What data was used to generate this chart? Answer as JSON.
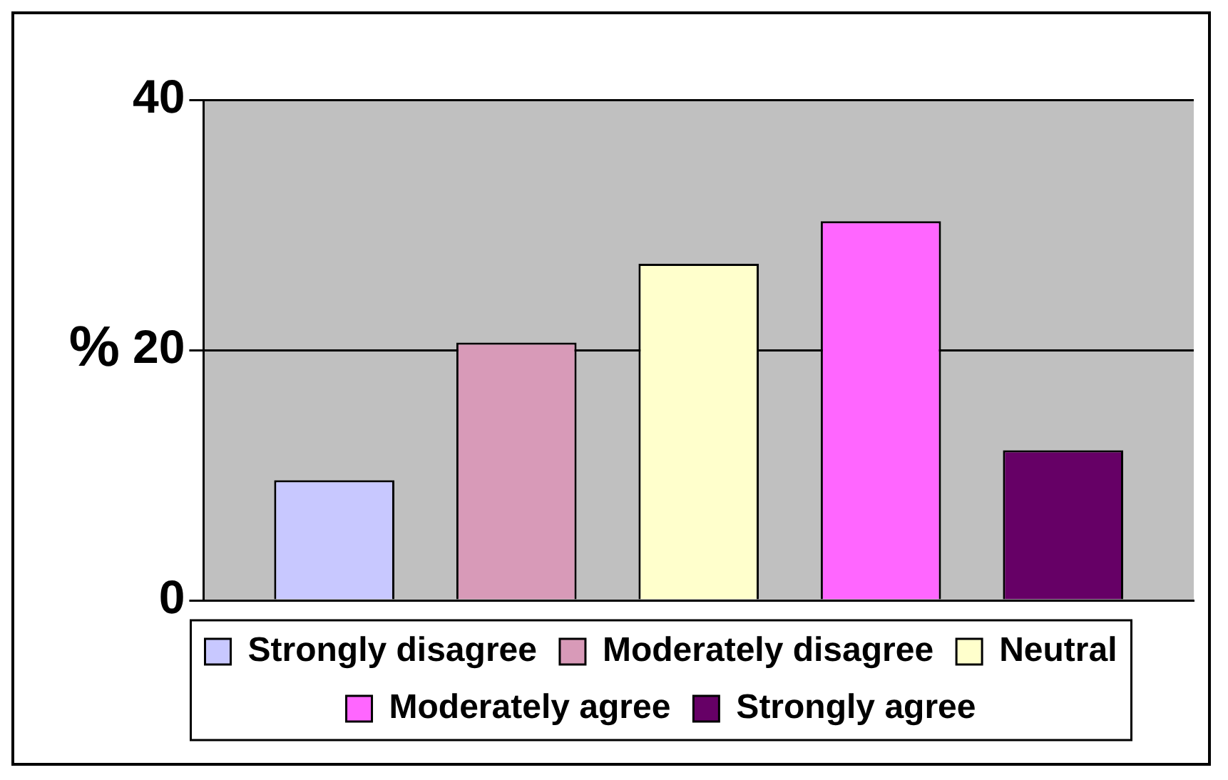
{
  "chart_data": {
    "type": "bar",
    "ylabel": "%",
    "categories": [
      null
    ],
    "series": [
      {
        "name": "Strongly disagree",
        "color": "#c8c8ff",
        "values": [
          9.6
        ]
      },
      {
        "name": "Moderately disagree",
        "color": "#d89ab8",
        "values": [
          20.6
        ]
      },
      {
        "name": "Neutral",
        "color": "#ffffcc",
        "values": [
          26.9
        ]
      },
      {
        "name": "Moderately agree",
        "color": "#ff66ff",
        "values": [
          30.3
        ]
      },
      {
        "name": "Strongly agree",
        "color": "#660066",
        "values": [
          12.0
        ]
      }
    ],
    "ylim": [
      0,
      40
    ],
    "yticks": [
      0,
      20,
      40
    ],
    "grid": "y",
    "legend": "bottom",
    "tick_labels": "y"
  }
}
